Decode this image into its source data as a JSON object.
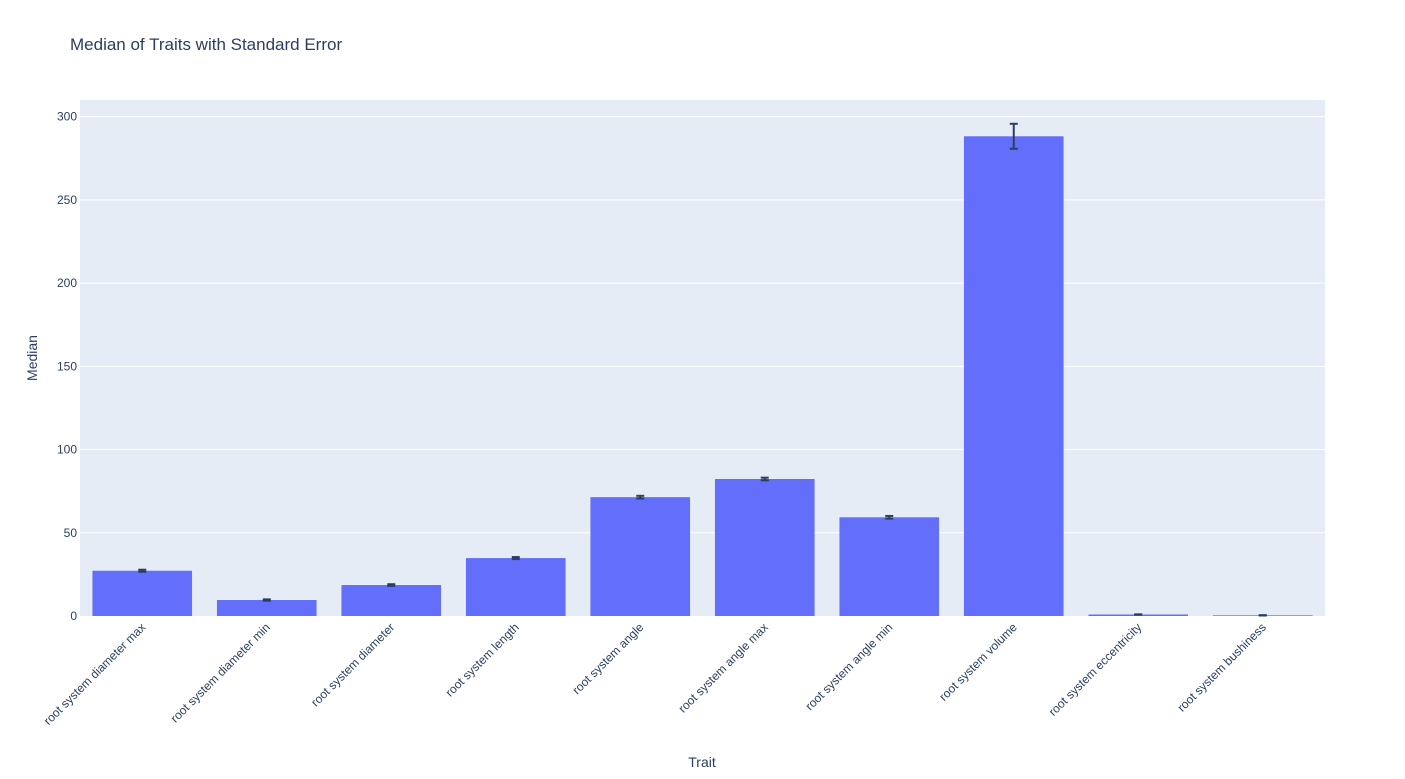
{
  "chart_data": {
    "type": "bar",
    "title": "Median of Traits with Standard Error",
    "xlabel": "Trait",
    "ylabel": "Median",
    "ylim": [
      0,
      310
    ],
    "yticks": [
      0,
      50,
      100,
      150,
      200,
      250,
      300
    ],
    "grid": true,
    "categories": [
      "root system diameter max",
      "root system diameter min",
      "root system diameter",
      "root system length",
      "root system angle",
      "root system angle max",
      "root system angle min",
      "root system volume",
      "root system eccentricity",
      "root system bushiness"
    ],
    "values": [
      27.2,
      9.6,
      18.6,
      34.8,
      71.4,
      82.3,
      59.3,
      288.2,
      0.9,
      0.4
    ],
    "errors": [
      0.6,
      0.4,
      0.5,
      0.6,
      0.8,
      0.8,
      0.8,
      7.5,
      0.1,
      0.1
    ],
    "bar_color": "#636efa",
    "error_color": "#2a3f5f",
    "plot_bg": "#e5ecf6"
  }
}
